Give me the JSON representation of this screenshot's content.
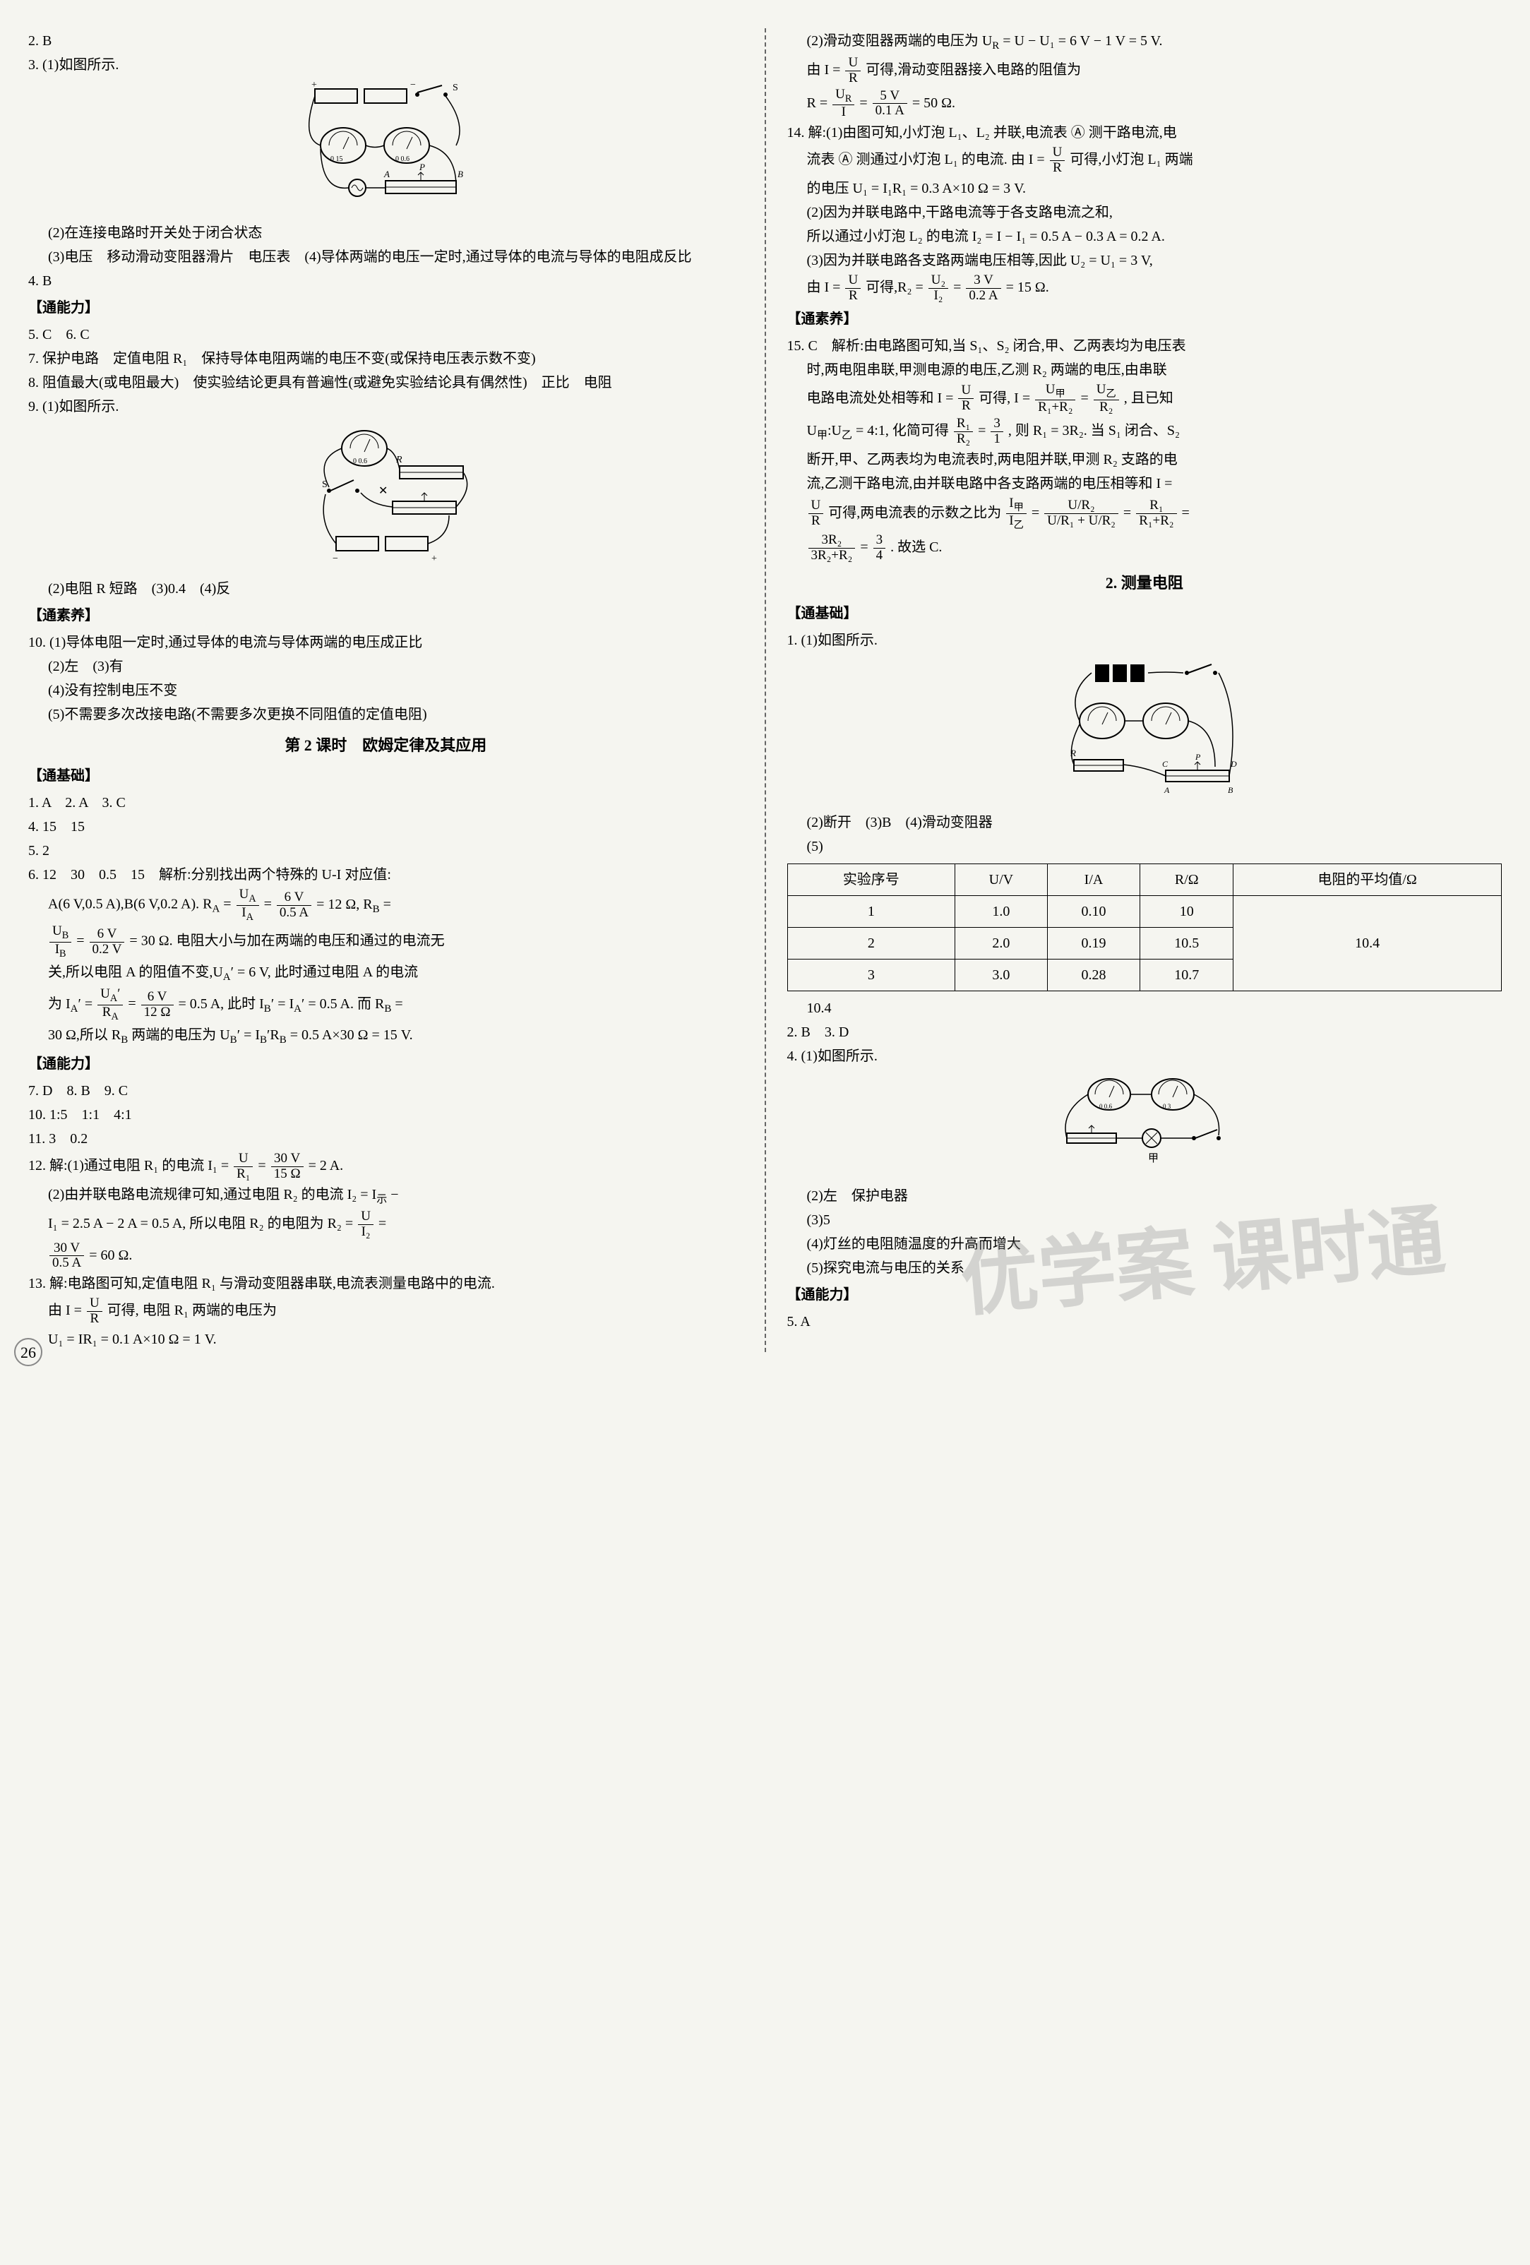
{
  "left": {
    "l2": "2. B",
    "l3": "3. (1)如图所示.",
    "fig1_labels": {
      "S": "S",
      "A": "A",
      "P": "P",
      "B": "B"
    },
    "l3_2": "(2)在连接电路时开关处于闭合状态",
    "l3_3": "(3)电压　移动滑动变阻器滑片　电压表　(4)导体两端的电压一定时,通过导体的电流与导体的电阻成反比",
    "l4": "4. B",
    "sec_ability": "【通能力】",
    "l5": "5. C　6. C",
    "l7": "7. 保护电路　定值电阻 R₁　保持导体电阻两端的电压不变(或保持电压表示数不变)",
    "l8": "8. 阻值最大(或电阻最大)　使实验结论更具有普遍性(或避免实验结论具有偶然性)　正比　电阻",
    "l9": "9. (1)如图所示.",
    "fig2_labels": {
      "S": "S",
      "R": "R"
    },
    "l9_2": "(2)电阻 R 短路　(3)0.4　(4)反",
    "sec_literacy": "【通素养】",
    "l10": "10. (1)导体电阻一定时,通过导体的电流与导体两端的电压成正比",
    "l10_2": "(2)左　(3)有",
    "l10_4": "(4)没有控制电压不变",
    "l10_5": "(5)不需要多次改接电路(不需要多次更换不同阻值的定值电阻)",
    "lesson2_title": "第 2 课时　欧姆定律及其应用",
    "sec_basic": "【通基础】",
    "b1": "1. A　2. A　3. C",
    "b4": "4. 15　15",
    "b5": "5. 2",
    "b6_head": "6. 12　30　0.5　15　解析:分别找出两个特殊的 U-I 对应值:",
    "b6_1a": "A(6 V,0.5 A),B(6 V,0.2 A). R",
    "b6_1b": "A",
    "b6_1c": " = ",
    "b6_frac1_num": "U<sub>A</sub>",
    "b6_frac1_den": "I<sub>A</sub>",
    "b6_1d": " = ",
    "b6_frac2_num": "6 V",
    "b6_frac2_den": "0.5 A",
    "b6_1e": " = 12 Ω, R<sub>B</sub> =",
    "b6_2a": " ",
    "b6_frac3_num": "U<sub>B</sub>",
    "b6_frac3_den": "I<sub>B</sub>",
    "b6_2b": " = ",
    "b6_frac4_num": "6 V",
    "b6_frac4_den": "0.2 V",
    "b6_2c": " = 30 Ω. 电阻大小与加在两端的电压和通过的电流无",
    "b6_3": "关,所以电阻 A 的阻值不变,U<sub>A</sub>′ = 6 V, 此时通过电阻 A 的电流",
    "b6_4a": "为 I<sub>A</sub>′ = ",
    "b6_frac5_num": "U<sub>A</sub>′",
    "b6_frac5_den": "R<sub>A</sub>",
    "b6_4b": " = ",
    "b6_frac6_num": "6 V",
    "b6_frac6_den": "12 Ω",
    "b6_4c": " = 0.5 A, 此时 I<sub>B</sub>′ = I<sub>A</sub>′ = 0.5 A. 而 R<sub>B</sub> =",
    "b6_5": "30 Ω,所以 R<sub>B</sub> 两端的电压为 U<sub>B</sub>′ = I<sub>B</sub>′R<sub>B</sub> = 0.5 A×30 Ω = 15 V.",
    "sec_ability2": "【通能力】",
    "b7": "7. D　8. B　9. C",
    "b10": "10. 1:5　1:1　4:1",
    "b11": "11. 3　0.2",
    "b12_head": "12. 解:(1)通过电阻 R₁ 的电流 I₁ = ",
    "b12_frac1_num": "U",
    "b12_frac1_den": "R₁",
    "b12_1b": " = ",
    "b12_frac2_num": "30 V",
    "b12_frac2_den": "15 Ω",
    "b12_1c": " = 2 A.",
    "b12_2": "(2)由并联电路电流规律可知,通过电阻 R₂ 的电流 I₂ = I<sub>示</sub> −",
    "b12_3a": "I₁ = 2.5 A − 2 A = 0.5 A, 所以电阻 R₂ 的电阻为 R₂ = ",
    "b12_frac3_num": "U",
    "b12_frac3_den": "I₂",
    "b12_3b": " =",
    "b12_4a": " ",
    "b12_frac4_num": "30 V",
    "b12_frac4_den": "0.5 A",
    "b12_4b": " = 60 Ω.",
    "b13_head": "13. 解:电路图可知,定值电阻 R₁ 与滑动变阻器串联,电流表测量电路中的电流.",
    "b13_2a": "由 I = ",
    "b13_frac1_num": "U",
    "b13_frac1_den": "R",
    "b13_2b": "可得, 电阻 R₁ 两端的电压为",
    "b13_3": "U₁ = IR₁ = 0.1 A×10 Ω = 1 V."
  },
  "right": {
    "r13_2": "(2)滑动变阻器两端的电压为 U<sub>R</sub> = U − U₁ = 6 V − 1 V = 5 V.",
    "r13_3a": "由 I = ",
    "r13_frac1_num": "U",
    "r13_frac1_den": "R",
    "r13_3b": "可得,滑动变阻器接入电路的阻值为",
    "r13_4a": "R = ",
    "r13_frac2_num": "U<sub>R</sub>",
    "r13_frac2_den": "I",
    "r13_4b": " = ",
    "r13_frac3_num": "5 V",
    "r13_frac3_den": "0.1 A",
    "r13_4c": " = 50 Ω.",
    "r14_head": "14. 解:(1)由图可知,小灯泡 L₁、L₂ 并联,电流表 Ⓐ 测干路电流,电",
    "r14_1b_a": "流表 Ⓐ 测通过小灯泡 L₁ 的电流. 由 I = ",
    "r14_fracA_num": "U",
    "r14_fracA_den": "R",
    "r14_1b_b": "可得,小灯泡 L₁ 两端",
    "r14_2": "的电压 U₁ = I₁R₁ = 0.3 A×10 Ω = 3 V.",
    "r14_3": "(2)因为并联电路中,干路电流等于各支路电流之和,",
    "r14_4": "所以通过小灯泡 L₂ 的电流 I₂ = I − I₁ = 0.5 A − 0.3 A = 0.2 A.",
    "r14_5": "(3)因为并联电路各支路两端电压相等,因此 U₂ = U₁ = 3 V,",
    "r14_6a": "由 I = ",
    "r14_frac1_num": "U",
    "r14_frac1_den": "R",
    "r14_6b": "可得,R₂ = ",
    "r14_frac2_num": "U₂",
    "r14_frac2_den": "I₂",
    "r14_6c": " = ",
    "r14_frac3_num": "3 V",
    "r14_frac3_den": "0.2 A",
    "r14_6d": " = 15 Ω.",
    "sec_literacy": "【通素养】",
    "r15_head": "15. C　解析:由电路图可知,当 S₁、S₂ 闭合,甲、乙两表均为电压表",
    "r15_2": "时,两电阻串联,甲测电源的电压,乙测 R₂ 两端的电压,由串联",
    "r15_3a": "电路电流处处相等和 I = ",
    "r15_frac1_num": "U",
    "r15_frac1_den": "R",
    "r15_3b": "可得, I = ",
    "r15_frac2_num": "U<sub>甲</sub>",
    "r15_frac2_den": "R₁+R₂",
    "r15_3c": " = ",
    "r15_frac3_num": "U<sub>乙</sub>",
    "r15_frac3_den": "R₂",
    "r15_3d": ", 且已知",
    "r15_4a": "U<sub>甲</sub>:U<sub>乙</sub> = 4:1, 化简可得",
    "r15_frac4_num": "R₁",
    "r15_frac4_den": "R₂",
    "r15_4b": " = ",
    "r15_frac5_num": "3",
    "r15_frac5_den": "1",
    "r15_4c": ", 则 R₁ = 3R₂. 当 S₁ 闭合、S₂",
    "r15_5": "断开,甲、乙两表均为电流表时,两电阻并联,甲测 R₂ 支路的电",
    "r15_6": "流,乙测干路电流,由并联电路中各支路两端的电压相等和 I =",
    "r15_7a": " ",
    "r15_frac6_num": "U",
    "r15_frac6_den": "R",
    "r15_7b": "可得,两电流表的示数之比为",
    "r15_frac7_num": "I<sub>甲</sub>",
    "r15_frac7_den": "I<sub>乙</sub>",
    "r15_7c": " = ",
    "r15_frac8_num": "U/R₂",
    "r15_frac8_den": "U/R₁ + U/R₂",
    "r15_7d": " = ",
    "r15_frac9_num": "R₁",
    "r15_frac9_den": "R₁+R₂",
    "r15_7e": " =",
    "r15_8a": " ",
    "r15_frac10_num": "3R₂",
    "r15_frac10_den": "3R₂+R₂",
    "r15_8b": " = ",
    "r15_frac11_num": "3",
    "r15_frac11_den": "4",
    "r15_8c": ". 故选 C.",
    "section2_title": "2. 测量电阻",
    "sec_basic": "【通基础】",
    "m1": "1. (1)如图所示.",
    "fig3_labels": {
      "R": "R",
      "C": "C",
      "P": "P",
      "D": "D",
      "A": "A",
      "B": "B"
    },
    "m1_2": "(2)断开　(3)B　(4)滑动变阻器",
    "m1_5": "(5)",
    "table": {
      "headers": [
        "实验序号",
        "U/V",
        "I/A",
        "R/Ω",
        "电阻的平均值/Ω"
      ],
      "rows": [
        [
          "1",
          "1.0",
          "0.10",
          "10"
        ],
        [
          "2",
          "2.0",
          "0.19",
          "10.5"
        ],
        [
          "3",
          "3.0",
          "0.28",
          "10.7"
        ]
      ],
      "avg": "10.4"
    },
    "m1_6": "10.4",
    "m2": "2. B　3. D",
    "m4": "4. (1)如图所示.",
    "fig4_label": "甲",
    "m4_2": "(2)左　保护电器",
    "m4_3": "(3)5",
    "m4_4": "(4)灯丝的电阻随温度的升高而增大",
    "m4_5": "(5)探究电流与电压的关系",
    "sec_ability": "【通能力】",
    "m5": "5. A"
  },
  "page_number": "26",
  "watermark": "优学案 课时通"
}
